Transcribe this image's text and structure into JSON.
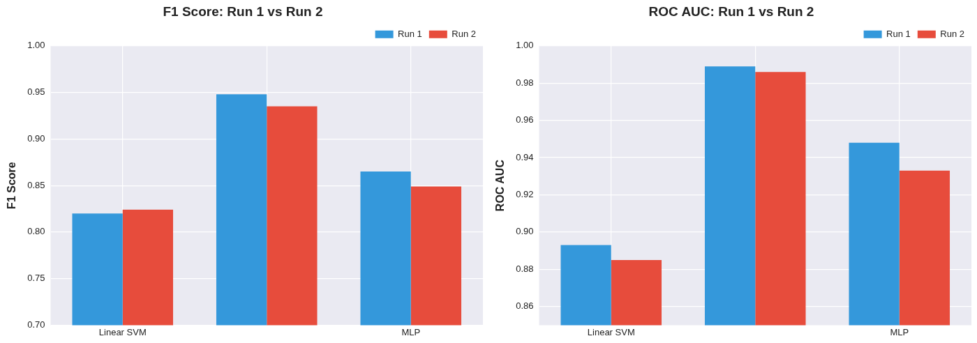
{
  "chart_data": [
    {
      "type": "bar",
      "title": "F1 Score: Run 1 vs Run 2",
      "ylabel": "F1 Score",
      "categories": [
        "Linear SVM",
        null,
        "MLP"
      ],
      "series": [
        {
          "name": "Run 1",
          "color": "#3498db",
          "values": [
            0.82,
            0.948,
            0.865
          ]
        },
        {
          "name": "Run 2",
          "color": "#e74c3c",
          "values": [
            0.824,
            0.935,
            0.849
          ]
        }
      ],
      "ylim": [
        0.7,
        1.0
      ],
      "yticks": [
        {
          "value": 0.7,
          "label": "0.70"
        },
        {
          "value": 0.75,
          "label": "0.75"
        },
        {
          "value": 0.8,
          "label": "0.80"
        },
        {
          "value": 0.85,
          "label": "0.85"
        },
        {
          "value": 0.9,
          "label": "0.90"
        },
        {
          "value": 0.95,
          "label": "0.95"
        },
        {
          "value": 1.0,
          "label": "1.00"
        }
      ],
      "grid": true,
      "legend": "top right"
    },
    {
      "type": "bar",
      "title": "ROC AUC: Run 1 vs Run 2",
      "ylabel": "ROC AUC",
      "categories": [
        "Linear SVM",
        null,
        "MLP"
      ],
      "series": [
        {
          "name": "Run 1",
          "color": "#3498db",
          "values": [
            0.893,
            0.989,
            0.948
          ]
        },
        {
          "name": "Run 2",
          "color": "#e74c3c",
          "values": [
            0.885,
            0.986,
            0.933
          ]
        }
      ],
      "ylim": [
        0.85,
        1.0
      ],
      "yticks": [
        {
          "value": 0.86,
          "label": "0.86"
        },
        {
          "value": 0.88,
          "label": "0.88"
        },
        {
          "value": 0.9,
          "label": "0.90"
        },
        {
          "value": 0.92,
          "label": "0.92"
        },
        {
          "value": 0.94,
          "label": "0.94"
        },
        {
          "value": 0.96,
          "label": "0.96"
        },
        {
          "value": 0.98,
          "label": "0.98"
        },
        {
          "value": 1.0,
          "label": "1.00"
        }
      ],
      "grid": true,
      "legend": "top right"
    }
  ]
}
